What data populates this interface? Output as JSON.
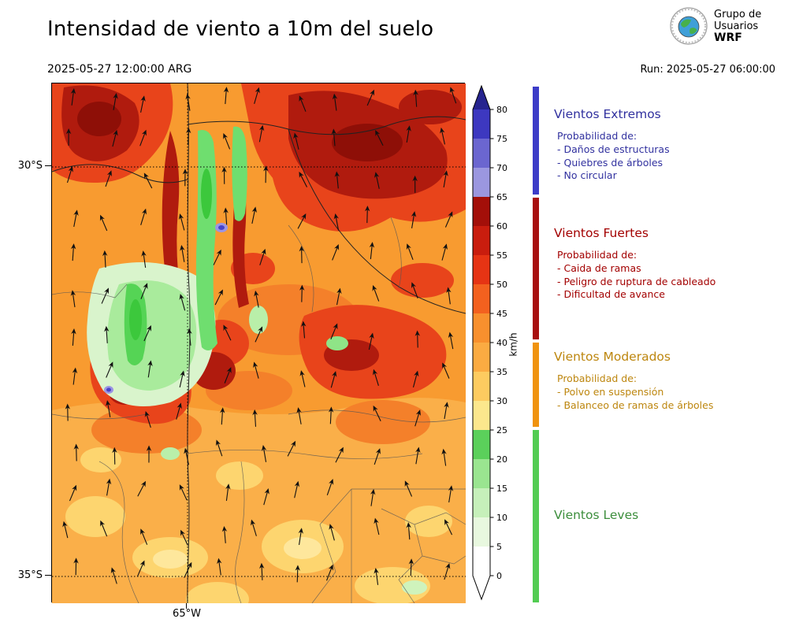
{
  "header": {
    "title": "Intensidad de viento a 10m del suelo",
    "valid_time": "2025-05-27 12:00:00 ARG",
    "run_label": "Run: 2025-05-27 06:00:00",
    "logo_lines": [
      "Grupo de",
      "Usuarios",
      "WRF"
    ]
  },
  "map": {
    "lat_ticks": [
      "30°S",
      "35°S"
    ],
    "lon_ticks": [
      "65°W"
    ]
  },
  "colorbar": {
    "unit": "km/h",
    "ticks": [
      0,
      5,
      10,
      15,
      20,
      25,
      30,
      35,
      40,
      45,
      50,
      55,
      60,
      65,
      70,
      75,
      80
    ],
    "segment_colors": [
      "#FFFFFF",
      "#E8F8DF",
      "#C6F0BA",
      "#9AE590",
      "#5BD05B",
      "#FCE78D",
      "#FDCB60",
      "#FBAB42",
      "#F8902E",
      "#F3611F",
      "#E63414",
      "#C91D0E",
      "#A30F09",
      "#9B97E0",
      "#6B66D0",
      "#3D38C0"
    ],
    "over_color": "#26248F",
    "under_color": "#FFFFFF"
  },
  "legend": {
    "sections": [
      {
        "title": "Vientos Extremos",
        "text_color": "#31319F",
        "bar_color": "#3C3CC8",
        "prob_label": "Probabilidad de:",
        "items": [
          "- Daños de estructuras",
          "- Quiebres de árboles",
          "- No circular"
        ]
      },
      {
        "title": "Vientos Fuertes",
        "text_color": "#A30000",
        "bar_color": "#A80F0F",
        "prob_label": "Probabilidad de:",
        "items": [
          "- Caida de ramas",
          "- Peligro de ruptura de cableado",
          "- Dificultad de avance"
        ]
      },
      {
        "title": "Vientos Moderados",
        "text_color": "#BD860E",
        "bar_color": "#F0930F",
        "prob_label": "Probabilidad de:",
        "items": [
          "- Polvo en suspensión",
          "- Balanceo de ramas de árboles"
        ]
      },
      {
        "title": "Vientos Leves",
        "text_color": "#3C8E3C",
        "bar_color": "#52CC52",
        "prob_label": "",
        "items": []
      }
    ]
  }
}
